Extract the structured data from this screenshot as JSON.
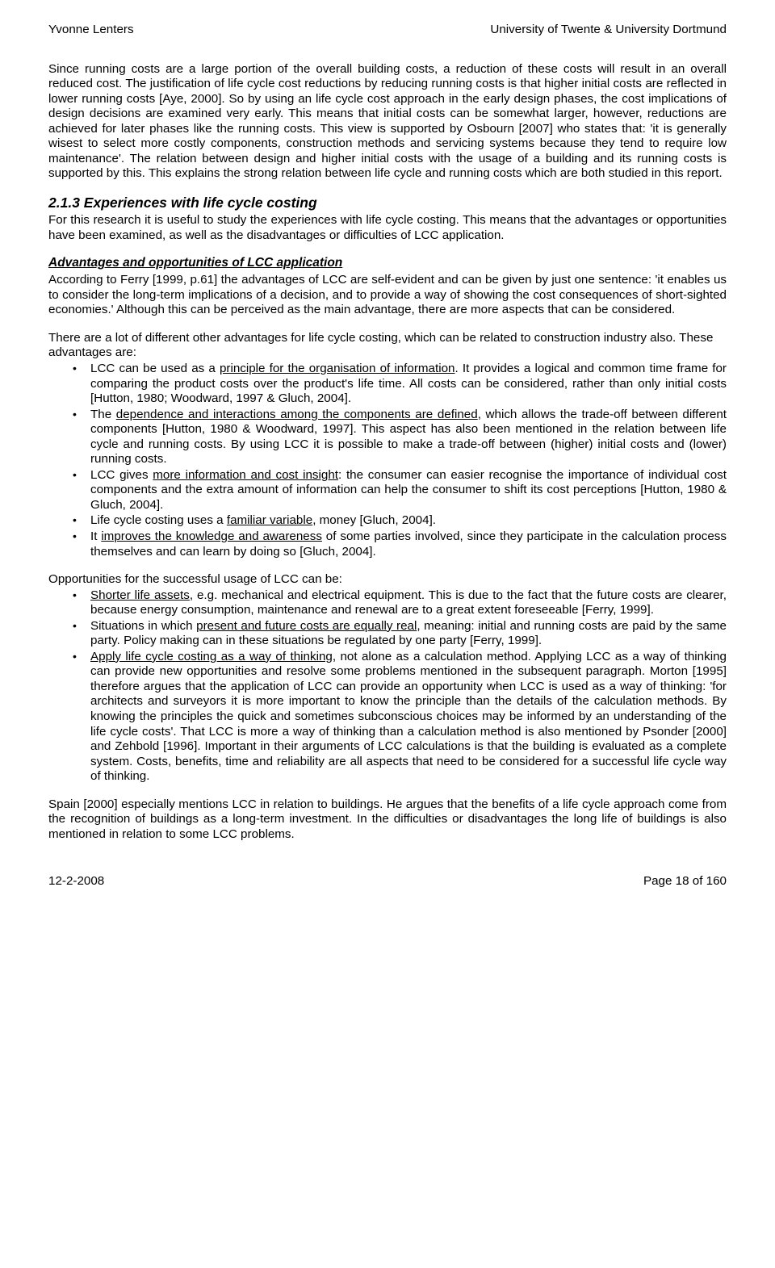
{
  "header": {
    "left": "Yvonne Lenters",
    "right": "University of Twente & University Dortmund"
  },
  "p1": "Since running costs are a large portion of the overall building costs, a reduction of these costs will result in an overall reduced cost. The justification of life cycle cost reductions by reducing running costs is that higher initial costs are reflected in lower running costs [Aye, 2000]. So by using an life cycle cost approach in the early design phases, the cost implications of design decisions are examined very early. This means that initial costs can be somewhat larger, however, reductions are achieved for later phases like the running costs. This view is supported by Osbourn [2007] who states that: 'it is generally wisest to select more costly components, construction methods and servicing systems because they tend to require low maintenance'. The relation between design and higher initial costs with the usage of a building and its running costs is supported by this. This explains the strong relation between life cycle and running costs which are both studied in this report.",
  "sec_title": "2.1.3 Experiences with life cycle costing",
  "p2": "For this research it is useful to study the experiences with life cycle costing. This means that the advantages or opportunities have been examined, as well as the disadvantages or difficulties of LCC application.",
  "subhead1": "Advantages and opportunities of LCC application",
  "p3": "According to Ferry [1999, p.61] the advantages of LCC are self-evident and can be given by just one sentence: 'it enables us to consider the long-term implications of a decision, and to provide a way of showing the cost consequences of short-sighted economies.' Although this can be perceived as the main advantage, there are more aspects that can be considered.",
  "p4": "There are a lot of different other advantages for life cycle costing, which can be related to construction industry also. These advantages are:",
  "adv": {
    "a1a": "LCC can be used as a ",
    "a1u": "principle for the organisation of information",
    "a1b": ". It provides a logical and common time frame for comparing the product costs over the product's life time. All costs can be considered, rather than only initial costs [Hutton, 1980; Woodward, 1997 & Gluch, 2004].",
    "a2a": "The ",
    "a2u": "dependence and interactions among the components are defined",
    "a2b": ", which allows the trade-off between different components [Hutton, 1980 & Woodward, 1997]. This aspect has also been mentioned in the relation between life cycle and running costs. By using LCC it is possible to make a trade-off between (higher) initial costs and (lower) running costs.",
    "a3a": "LCC gives ",
    "a3u": "more information and cost insight",
    "a3b": ": the consumer can easier recognise the importance of individual cost components and the extra amount of information can help the consumer to shift its cost perceptions [Hutton, 1980 & Gluch, 2004].",
    "a4a": "Life cycle costing uses a ",
    "a4u": "familiar variable",
    "a4b": ", money [Gluch, 2004].",
    "a5a": "It ",
    "a5u": "improves the knowledge and awareness",
    "a5b": " of some parties involved, since they participate in the calculation process themselves and can learn by doing so [Gluch, 2004]."
  },
  "p5": "Opportunities for the successful usage of LCC can be:",
  "opp": {
    "o1u": "Shorter life assets",
    "o1b": ", e.g. mechanical and electrical equipment. This is due to the fact that the future costs are clearer, because energy consumption, maintenance and renewal are to a great extent foreseeable [Ferry, 1999].",
    "o2a": "Situations in which ",
    "o2u": "present and future costs are equally real",
    "o2b": ", meaning: initial and running costs are paid by the same party. Policy making can in these situations be regulated by one party [Ferry, 1999].",
    "o3u": "Apply life cycle costing as a way of thinking",
    "o3b": ", not alone as a calculation method. Applying LCC as a way of thinking can provide new opportunities and resolve some problems mentioned in the subsequent paragraph. Morton [1995] therefore argues that the application of LCC can provide an opportunity when LCC is used as a way of thinking: 'for architects and surveyors it is more important to know the principle than the details of the calculation methods. By knowing the principles the quick and sometimes subconscious choices may be informed by an understanding of the life cycle costs'. That LCC is more a way of thinking than a calculation method is also mentioned by Psonder [2000] and Zehbold [1996]. Important in their arguments of LCC calculations is that the building is evaluated as a complete system. Costs, benefits, time and reliability are all aspects that need to be considered for a successful life cycle way of thinking."
  },
  "p6": "Spain [2000] especially mentions LCC in relation to buildings. He argues that the benefits of a life cycle approach come from the recognition of buildings as a long-term investment. In the difficulties or disadvantages the long life of buildings is also mentioned in relation to some LCC problems.",
  "footer": {
    "date": "12-2-2008",
    "page": "Page 18 of 160"
  }
}
